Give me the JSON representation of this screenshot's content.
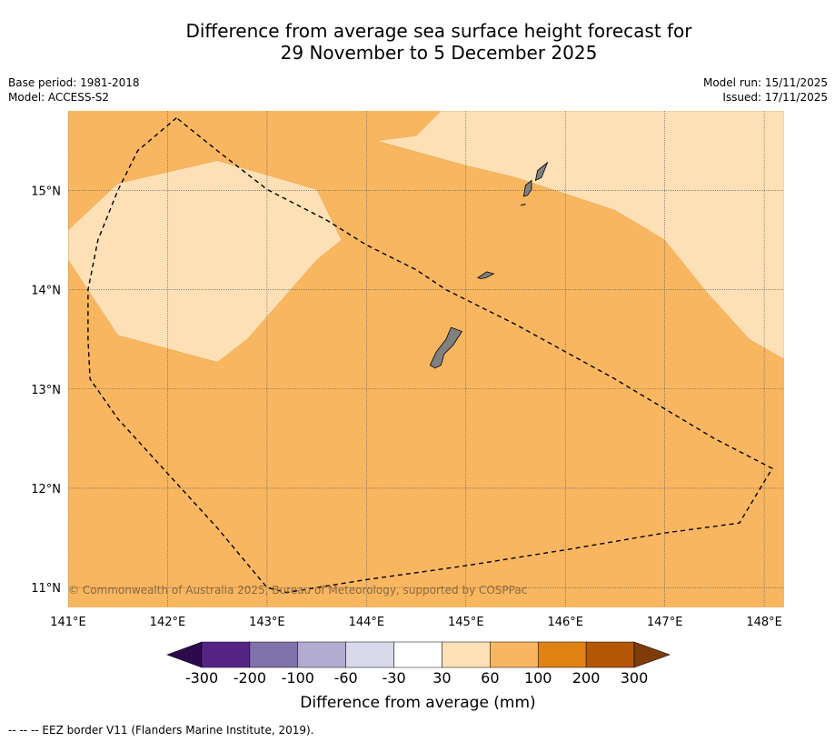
{
  "header": {
    "title_line1": "Difference from average sea surface height forecast for",
    "title_line2": "29 November to 5 December 2025",
    "base_period": "Base period: 1981-2018",
    "model": "Model: ACCESS-S2",
    "model_run": "Model run: 15/11/2025",
    "issued": "Issued: 17/11/2025"
  },
  "copyright": "© Commonwealth of Australia 2025, Bureau of Meteorology, supported by COSPPac",
  "footer": "-- -- -- EEZ border V11 (Flanders Marine Institute, 2019).",
  "colors": {
    "above_60": "#f9b660",
    "between_30_60": "#fde0b5",
    "land": "#808080",
    "eez_line": "#000000"
  },
  "chart_data": {
    "type": "map",
    "title": "Difference from average sea surface height forecast for 29 November to 5 December 2025",
    "xlim": [
      141,
      148.2
    ],
    "ylim": [
      10.8,
      15.8
    ],
    "x_ticks": [
      {
        "value": 141,
        "label": "141°E"
      },
      {
        "value": 142,
        "label": "142°E"
      },
      {
        "value": 143,
        "label": "143°E"
      },
      {
        "value": 144,
        "label": "144°E"
      },
      {
        "value": 145,
        "label": "145°E"
      },
      {
        "value": 146,
        "label": "146°E"
      },
      {
        "value": 147,
        "label": "147°E"
      },
      {
        "value": 148,
        "label": "148°E"
      }
    ],
    "y_ticks": [
      {
        "value": 15,
        "label": "15°N"
      },
      {
        "value": 14,
        "label": "14°N"
      },
      {
        "value": 13,
        "label": "13°N"
      },
      {
        "value": 12,
        "label": "12°N"
      },
      {
        "value": 11,
        "label": "11°N"
      }
    ],
    "regions": [
      {
        "name": "west-30-60-region",
        "category": "30 to 60",
        "lonlat": [
          [
            141,
            14.6
          ],
          [
            141.5,
            15.07
          ],
          [
            142.5,
            15.3
          ],
          [
            143.5,
            15.01
          ],
          [
            143.75,
            14.5
          ],
          [
            143.5,
            14.3
          ],
          [
            142.8,
            13.5
          ],
          [
            142.5,
            13.27
          ],
          [
            141.5,
            13.54
          ],
          [
            141,
            14.3
          ]
        ]
      },
      {
        "name": "northeast-30-60-region",
        "category": "30 to 60",
        "lonlat": [
          [
            144.1,
            15.5
          ],
          [
            144.5,
            15.55
          ],
          [
            144.75,
            15.8
          ],
          [
            148.2,
            15.8
          ],
          [
            148.2,
            13.3
          ],
          [
            147.85,
            13.5
          ],
          [
            147.4,
            14
          ],
          [
            147,
            14.5
          ],
          [
            146.5,
            14.8
          ],
          [
            145.5,
            15.13
          ],
          [
            145,
            15.25
          ]
        ]
      }
    ],
    "islands": [
      {
        "name": "Guam",
        "lonlat": [
          [
            144.64,
            13.24
          ],
          [
            144.7,
            13.37
          ],
          [
            144.8,
            13.5
          ],
          [
            144.85,
            13.62
          ],
          [
            144.96,
            13.58
          ],
          [
            144.87,
            13.44
          ],
          [
            144.78,
            13.35
          ],
          [
            144.75,
            13.24
          ],
          [
            144.69,
            13.21
          ]
        ]
      },
      {
        "name": "Rota",
        "lonlat": [
          [
            145.12,
            14.12
          ],
          [
            145.21,
            14.18
          ],
          [
            145.28,
            14.16
          ],
          [
            145.2,
            14.12
          ],
          [
            145.15,
            14.11
          ]
        ]
      },
      {
        "name": "Tinian",
        "lonlat": [
          [
            145.58,
            14.94
          ],
          [
            145.6,
            15.05
          ],
          [
            145.66,
            15.1
          ],
          [
            145.66,
            15.01
          ],
          [
            145.62,
            14.95
          ]
        ]
      },
      {
        "name": "Saipan",
        "lonlat": [
          [
            145.7,
            15.1
          ],
          [
            145.72,
            15.2
          ],
          [
            145.82,
            15.28
          ],
          [
            145.76,
            15.13
          ]
        ]
      },
      {
        "name": "Aguijan",
        "lonlat": [
          [
            145.55,
            14.85
          ],
          [
            145.6,
            14.86
          ]
        ]
      }
    ],
    "eez_border": [
      [
        142.09,
        15.73
      ],
      [
        141.7,
        15.4
      ],
      [
        141.5,
        15
      ],
      [
        141.3,
        14.5
      ],
      [
        141.2,
        14
      ],
      [
        141.2,
        13.5
      ],
      [
        141.22,
        13.1
      ],
      [
        141.5,
        12.7
      ],
      [
        142,
        12.15
      ],
      [
        142.5,
        11.6
      ],
      [
        143,
        11.0
      ],
      [
        143.2,
        10.95
      ],
      [
        143.5,
        11
      ],
      [
        144,
        11.08
      ],
      [
        144.5,
        11.15
      ],
      [
        145,
        11.22
      ],
      [
        146,
        11.38
      ],
      [
        147,
        11.55
      ],
      [
        147.75,
        11.65
      ],
      [
        148.08,
        12.2
      ],
      [
        147.5,
        12.5
      ],
      [
        146.5,
        13.1
      ],
      [
        145.5,
        13.65
      ],
      [
        144.8,
        14
      ],
      [
        144.5,
        14.2
      ],
      [
        144,
        14.45
      ],
      [
        143.6,
        14.7
      ],
      [
        143,
        15.01
      ],
      [
        142.5,
        15.4
      ],
      [
        142.09,
        15.73
      ]
    ],
    "legend": {
      "title": "Difference from average (mm)",
      "colors": [
        "#2d0a4e",
        "#562485",
        "#8073ac",
        "#b2abd2",
        "#d8daeb",
        "#ffffff",
        "#fde0b5",
        "#f9b660",
        "#e08214",
        "#b35806",
        "#7f3b08"
      ],
      "labels": [
        "-300",
        "-200",
        "-100",
        "-60",
        "-30",
        "30",
        "60",
        "100",
        "200",
        "300"
      ],
      "extend": "both"
    }
  }
}
